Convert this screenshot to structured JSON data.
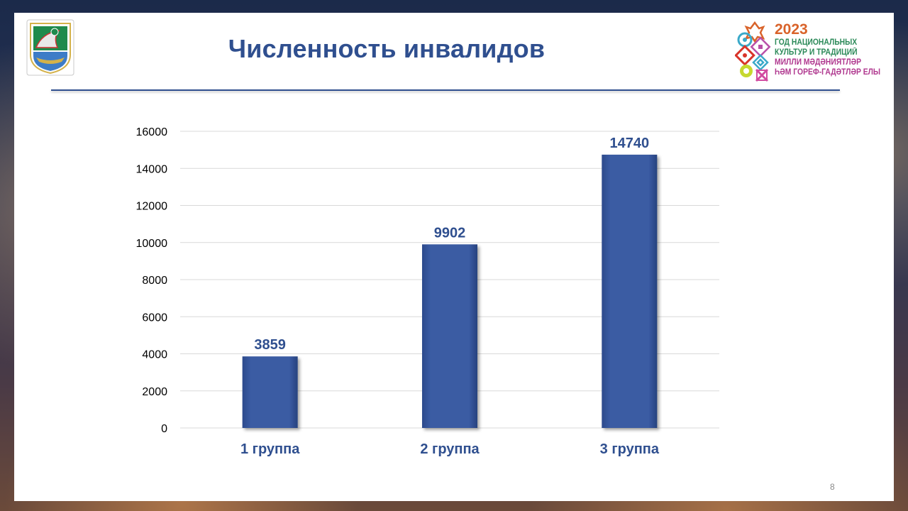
{
  "slide": {
    "title": "Численность инвалидов",
    "page_number": "8"
  },
  "logo_right": {
    "year": "2023",
    "line1": "ГОД НАЦИОНАЛЬНЫХ",
    "line2": "КУЛЬТУР И ТРАДИЦИЙ",
    "line3": "МИЛЛИ МӘДӘНИЯТЛӘР",
    "line4": "ҺӘМ ГОРЕФ-ГАДӘТЛӘР ЕЛЫ"
  },
  "colors": {
    "bar": "#3a5ba3",
    "title": "#2f4f8f",
    "grid": "#d9d9d9"
  },
  "chart_data": {
    "type": "bar",
    "title": "Численность инвалидов",
    "categories": [
      "1 группа",
      "2 группа",
      "3 группа"
    ],
    "values": [
      3859,
      9902,
      14740
    ],
    "ylim": [
      0,
      16000
    ],
    "yticks": [
      0,
      2000,
      4000,
      6000,
      8000,
      10000,
      12000,
      14000,
      16000
    ],
    "grid": true,
    "data_labels": true,
    "legend": "none",
    "xlabel": "",
    "ylabel": ""
  }
}
